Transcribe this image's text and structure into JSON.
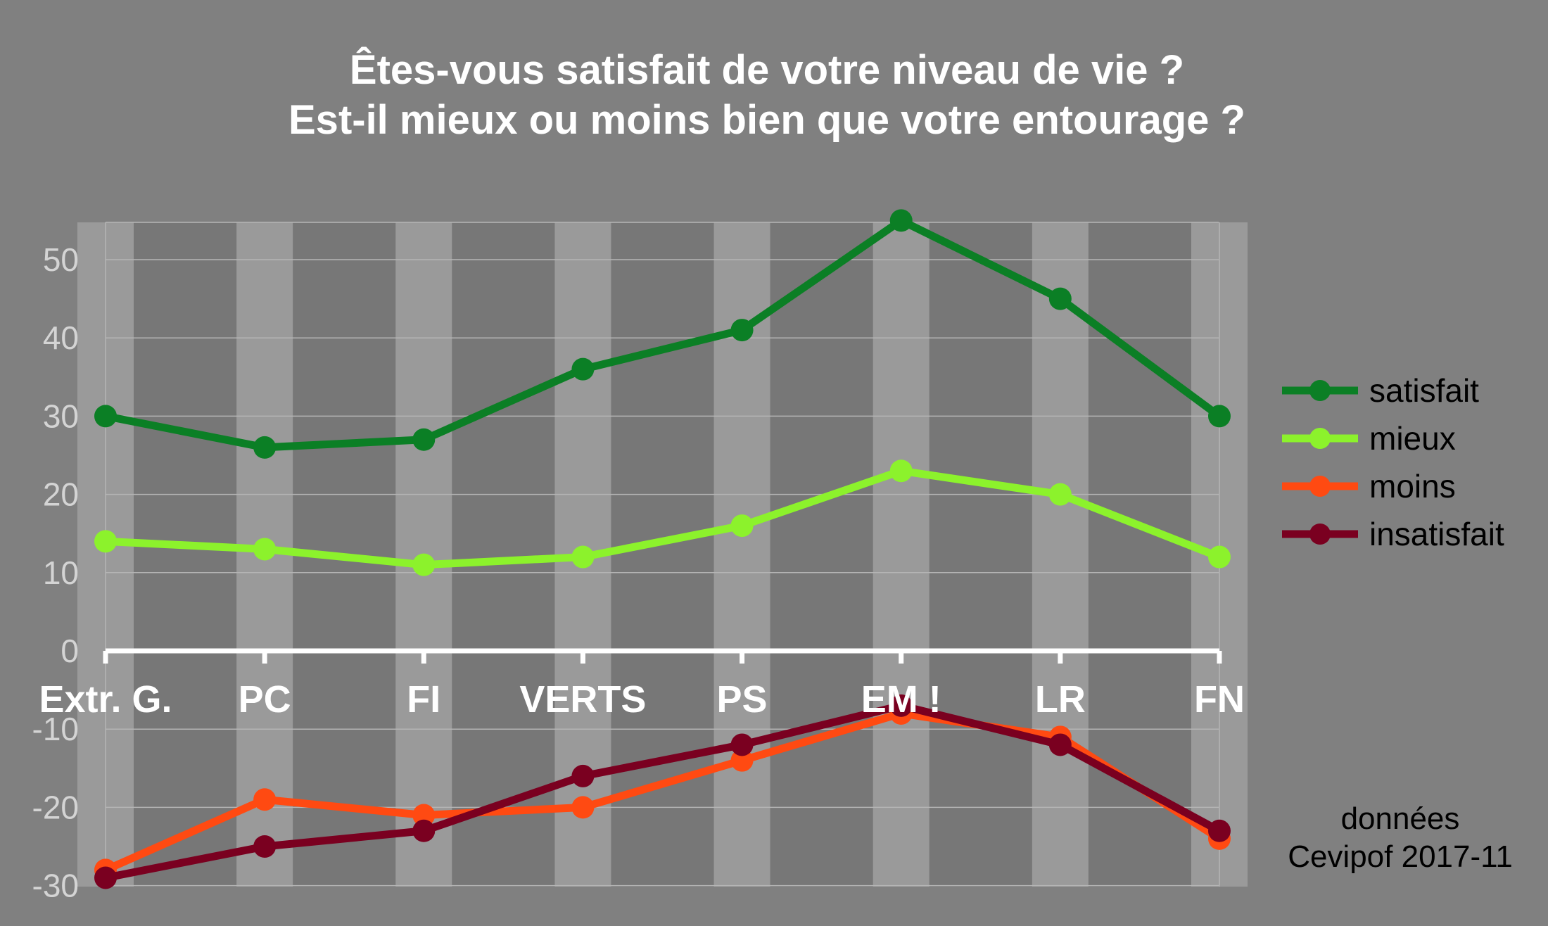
{
  "chart_data": {
    "type": "line",
    "title": "Êtes-vous satisfait de votre niveau de vie ?",
    "subtitle": "Est-il mieux ou moins bien que votre entourage ?",
    "categories": [
      "Extr. G.",
      "PC",
      "FI",
      "VERTS",
      "PS",
      "EM !",
      "LR",
      "FN"
    ],
    "ylim": [
      -30,
      55
    ],
    "yticks": [
      50,
      40,
      30,
      20,
      10,
      0,
      -10,
      -20,
      -30
    ],
    "grid": true,
    "legend_position": "right",
    "series": [
      {
        "name": "satisfait",
        "color": "#0b7f25",
        "values": [
          30,
          26,
          27,
          36,
          41,
          55,
          45,
          30
        ]
      },
      {
        "name": "mieux",
        "color": "#8cf22c",
        "values": [
          14,
          13,
          11,
          12,
          16,
          23,
          20,
          12
        ]
      },
      {
        "name": "moins",
        "color": "#ff4a12",
        "values": [
          -28,
          -19,
          -21,
          -20,
          -14,
          -8,
          -11,
          -24
        ]
      },
      {
        "name": "insatisfait",
        "color": "#7a0020",
        "values": [
          -29,
          -25,
          -23,
          -16,
          -12,
          -7,
          -12,
          -23
        ]
      }
    ],
    "source_line1": "données",
    "source_line2": "Cevipof 2017-11"
  }
}
